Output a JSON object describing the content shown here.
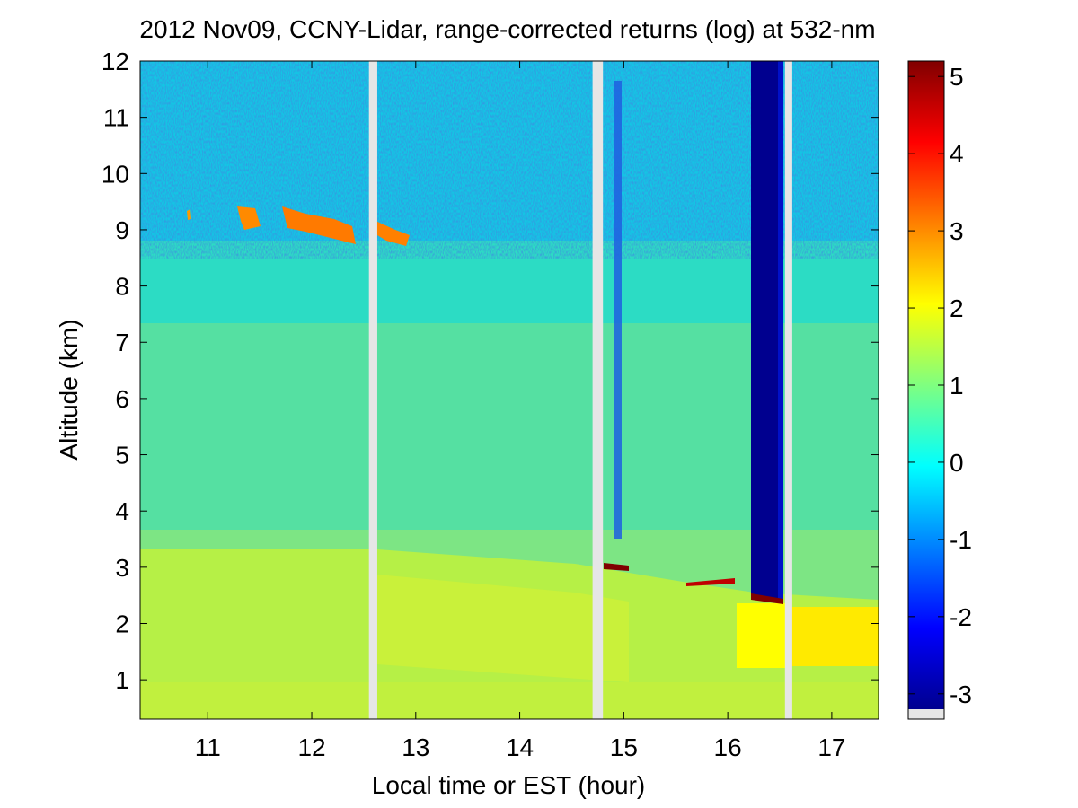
{
  "chart_data": {
    "type": "heatmap",
    "title": "2012 Nov09, CCNY-Lidar, range-corrected returns (log) at 532-nm",
    "xlabel": "Local time or EST (hour)",
    "ylabel": "Altitude (km)",
    "xlim": [
      10.35,
      17.45
    ],
    "ylim": [
      0.3,
      12
    ],
    "xticks": [
      11,
      12,
      13,
      14,
      15,
      16,
      17
    ],
    "yticks": [
      1,
      2,
      3,
      4,
      5,
      6,
      7,
      8,
      9,
      10,
      11,
      12
    ],
    "colorbar": {
      "colormap": "jet",
      "range": [
        -3.2,
        5.2
      ],
      "ticks": [
        -3,
        -2,
        -1,
        0,
        1,
        2,
        3,
        4,
        5
      ],
      "missing_color": "#e6e6e6"
    },
    "grid": false,
    "data_gaps_hours": [
      [
        12.55,
        12.63
      ],
      [
        14.7,
        14.8
      ],
      [
        16.55,
        16.62
      ]
    ],
    "cloud_layers": [
      {
        "x": [
          11.3,
          11.5
        ],
        "y": [
          9.1,
          9.4
        ],
        "value": 3.0
      },
      {
        "x": [
          11.7,
          12.45
        ],
        "y": [
          8.8,
          9.4
        ],
        "value": 3.0
      },
      {
        "x": [
          12.65,
          12.95
        ],
        "y": [
          8.8,
          9.1
        ],
        "value": 2.9
      },
      {
        "x": [
          14.85,
          15.05
        ],
        "y": [
          2.95,
          3.05
        ],
        "value": 5.0
      },
      {
        "x": [
          16.25,
          16.5
        ],
        "y": [
          2.35,
          2.45
        ],
        "value": 5.0
      }
    ]
  }
}
